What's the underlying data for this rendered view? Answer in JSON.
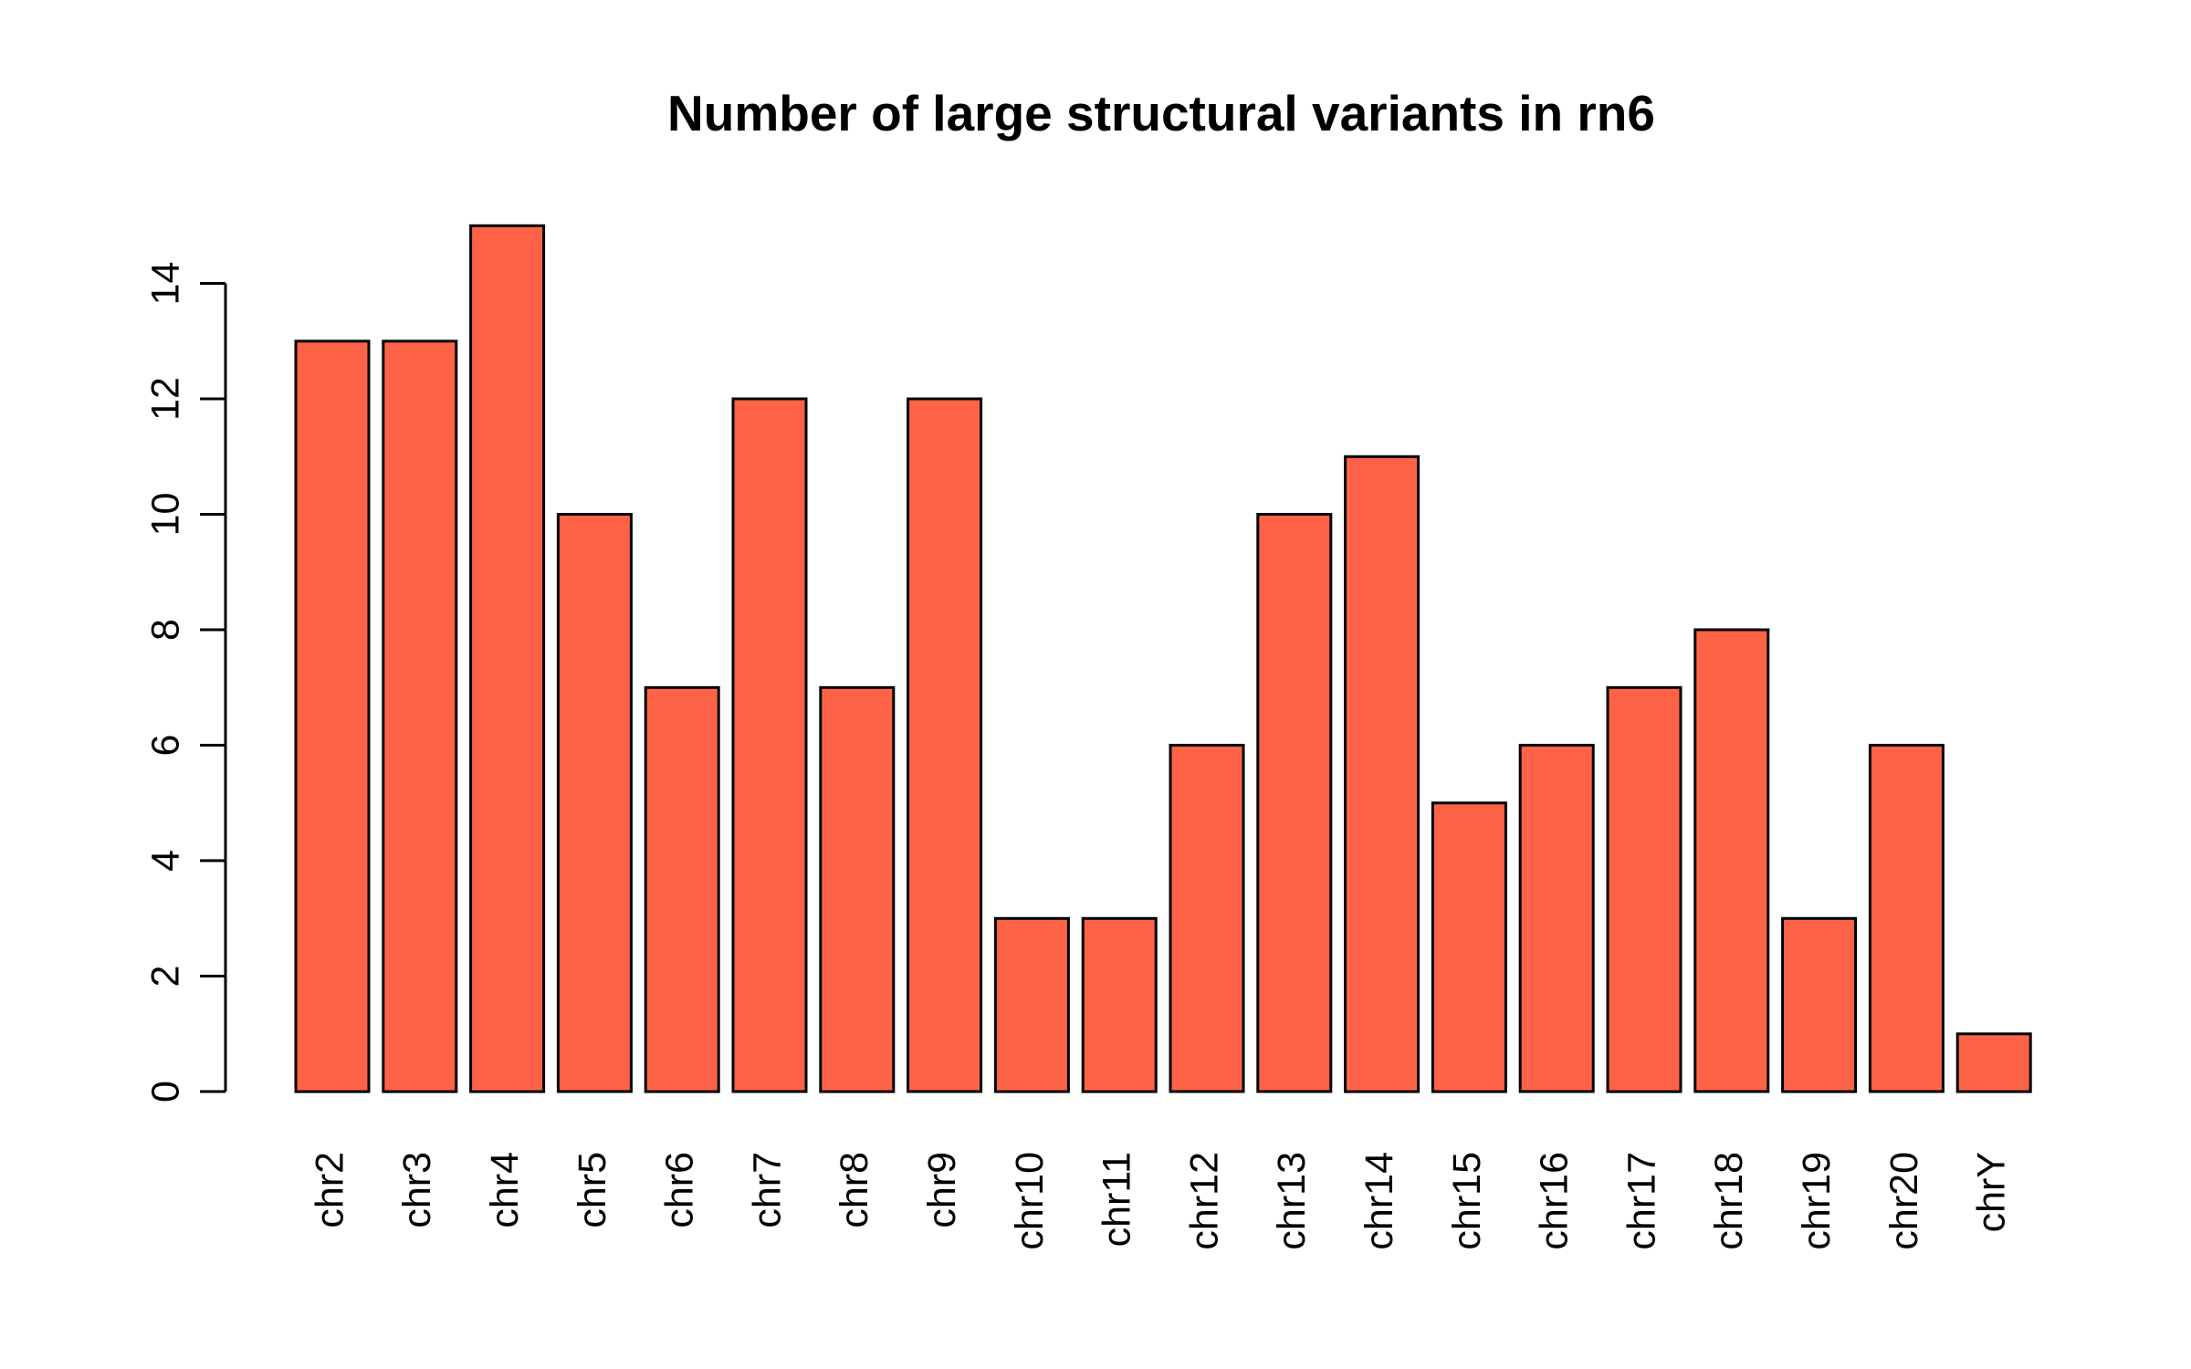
{
  "chart_data": {
    "type": "bar",
    "title": "Number of large structural variants in rn6",
    "xlabel": "",
    "ylabel": "",
    "categories": [
      "chr2",
      "chr3",
      "chr4",
      "chr5",
      "chr6",
      "chr7",
      "chr8",
      "chr9",
      "chr10",
      "chr11",
      "chr12",
      "chr13",
      "chr14",
      "chr15",
      "chr16",
      "chr17",
      "chr18",
      "chr19",
      "chr20",
      "chrY"
    ],
    "values": [
      13,
      13,
      15,
      10,
      7,
      12,
      7,
      12,
      3,
      3,
      6,
      10,
      11,
      5,
      6,
      7,
      8,
      3,
      6,
      1
    ],
    "ylim": [
      0,
      15
    ],
    "yticks": [
      0,
      2,
      4,
      6,
      8,
      10,
      12,
      14
    ],
    "bar_color": "#FF6347",
    "border_color": "#000000",
    "grid": false,
    "legend": "none",
    "category_label_orientation": "vertical"
  }
}
